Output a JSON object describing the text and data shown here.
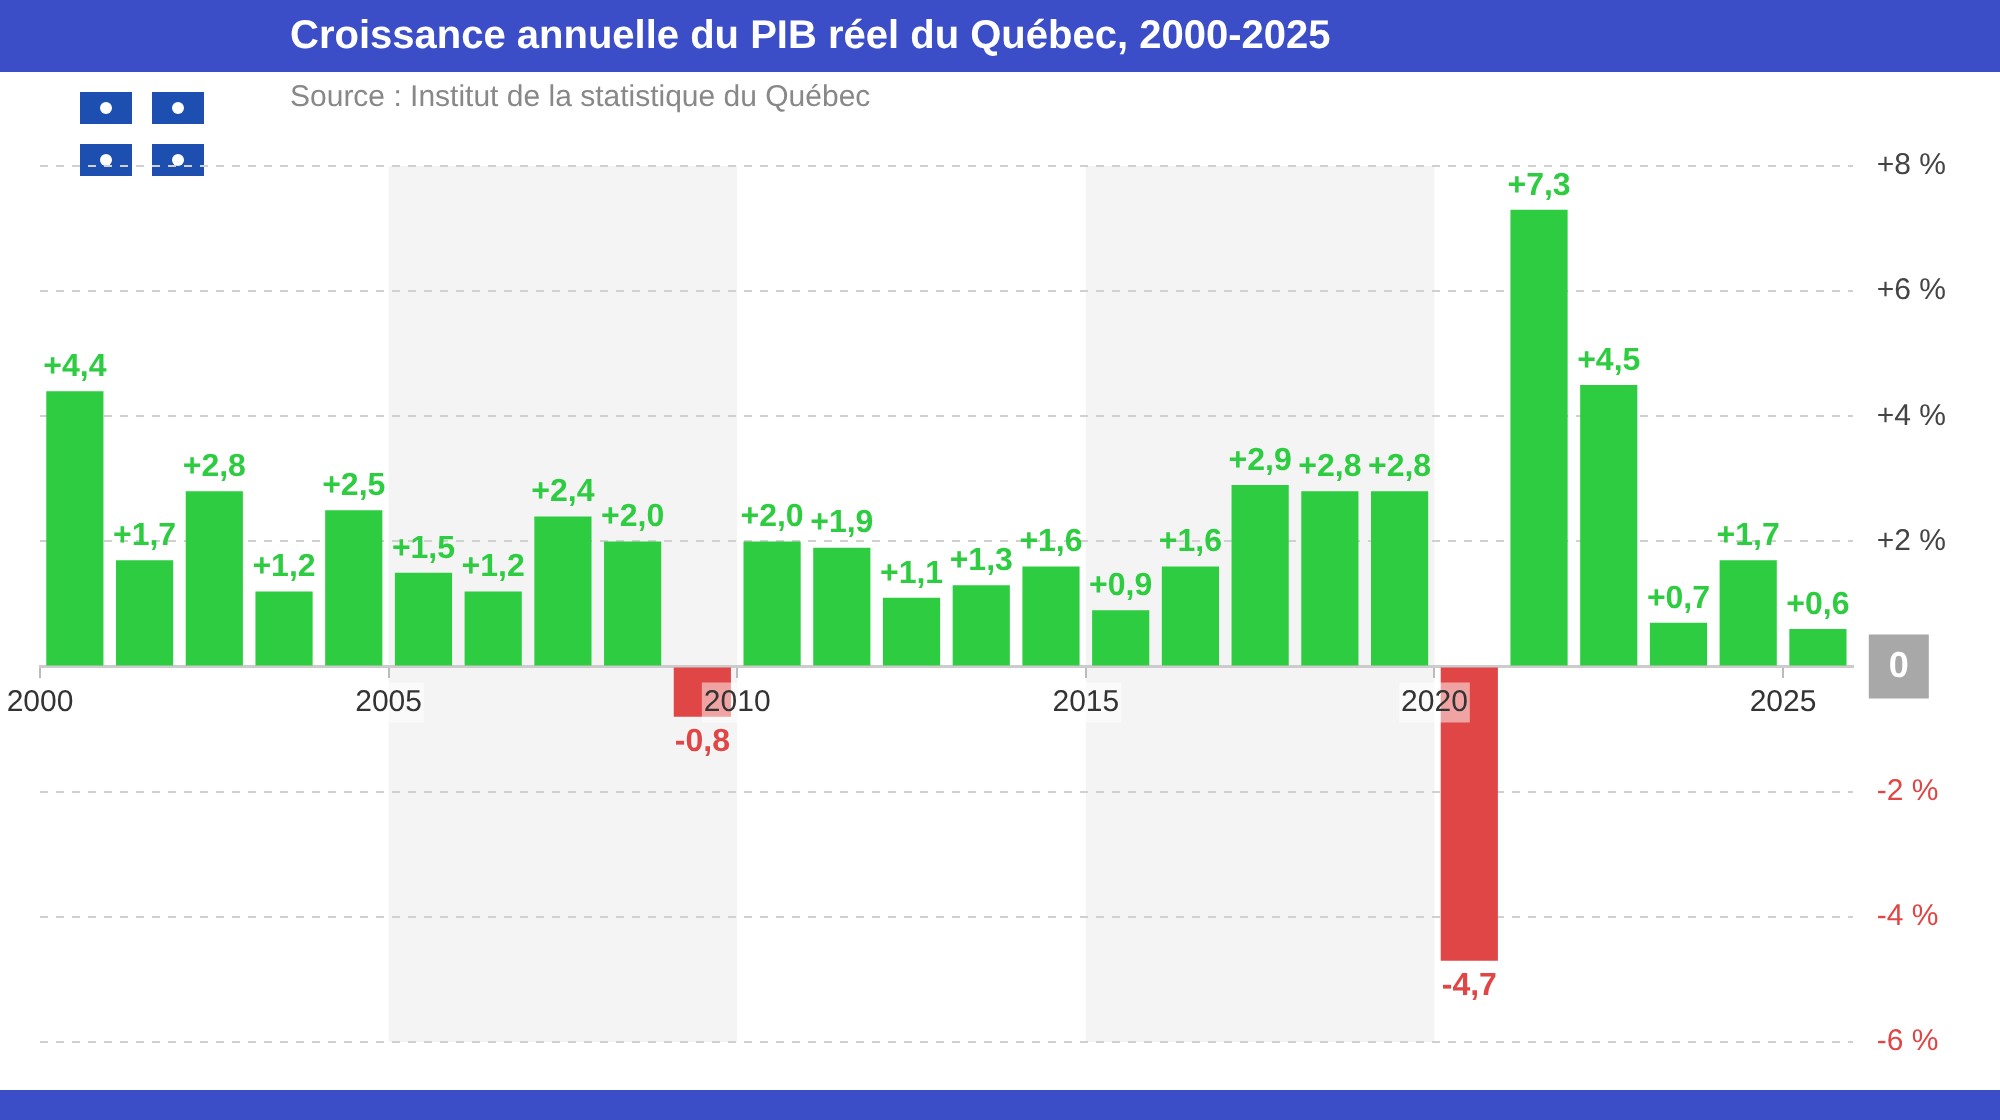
{
  "chart_data": {
    "type": "bar",
    "title": "Croissance annuelle du PIB réel du Québec, 2000-2025",
    "subtitle": "Source : Institut de la statistique du Québec",
    "categories": [
      "2000",
      null,
      null,
      null,
      null,
      "2005",
      null,
      null,
      null,
      null,
      "2010",
      null,
      null,
      null,
      null,
      "2015",
      null,
      null,
      null,
      null,
      "2020",
      null,
      null,
      null,
      null,
      "2025"
    ],
    "values": [
      4.4,
      1.7,
      2.8,
      1.2,
      2.5,
      1.5,
      1.2,
      2.4,
      2.0,
      -0.8,
      2.0,
      1.9,
      1.1,
      1.3,
      1.6,
      0.9,
      1.6,
      2.9,
      2.8,
      2.8,
      -4.7,
      7.3,
      4.5,
      0.7,
      1.7,
      0.6
    ],
    "colors": [
      "#2ecc40",
      "#2ecc40",
      "#2ecc40",
      "#2ecc40",
      "#2ecc40",
      "#2ecc40",
      "#2ecc40",
      "#2ecc40",
      "#2ecc40",
      "#e04646",
      "#2ecc40",
      "#2ecc40",
      "#2ecc40",
      "#2ecc40",
      "#2ecc40",
      "#2ecc40",
      "#2ecc40",
      "#2ecc40",
      "#2ecc40",
      "#2ecc40",
      "#e04646",
      "#2ecc40",
      "#2ecc40",
      "#2ecc40",
      "#2ecc40",
      "#2ecc40"
    ],
    "value_labels": [
      "+4,4",
      "+1,7",
      "+2,8",
      "+1,2",
      "+2,5",
      "+1,5",
      "+1,2",
      "+2,4",
      "+2,0",
      "-0,8",
      "+2,0",
      "+1,9",
      "+1,1",
      "+1,3",
      "+1,6",
      "+0,9",
      "+1,6",
      "+2,9",
      "+2,8",
      "+2,8",
      "-4,7",
      "+7,3",
      "+4,5",
      "+0,7",
      "+1,7",
      "+0,6"
    ],
    "ylim": [
      -6,
      8
    ],
    "yticks": [
      {
        "value": 8,
        "label": "+8 %"
      },
      {
        "value": 6,
        "label": "+6 %"
      },
      {
        "value": 4,
        "label": "+4 %"
      },
      {
        "value": 2,
        "label": "+2 %"
      },
      {
        "value": 0,
        "label": "0"
      },
      {
        "value": -2,
        "label": "-2 %"
      },
      {
        "value": -4,
        "label": "-4 %"
      },
      {
        "value": -6,
        "label": "-6 %"
      }
    ],
    "bands": [
      {
        "axis": "x",
        "from": "2005",
        "to": "2010",
        "color": "#f4f4f4"
      },
      {
        "axis": "x",
        "from": "2015",
        "to": "2020",
        "color": "#f4f4f4"
      }
    ],
    "grid": "y",
    "legend": false
  }
}
